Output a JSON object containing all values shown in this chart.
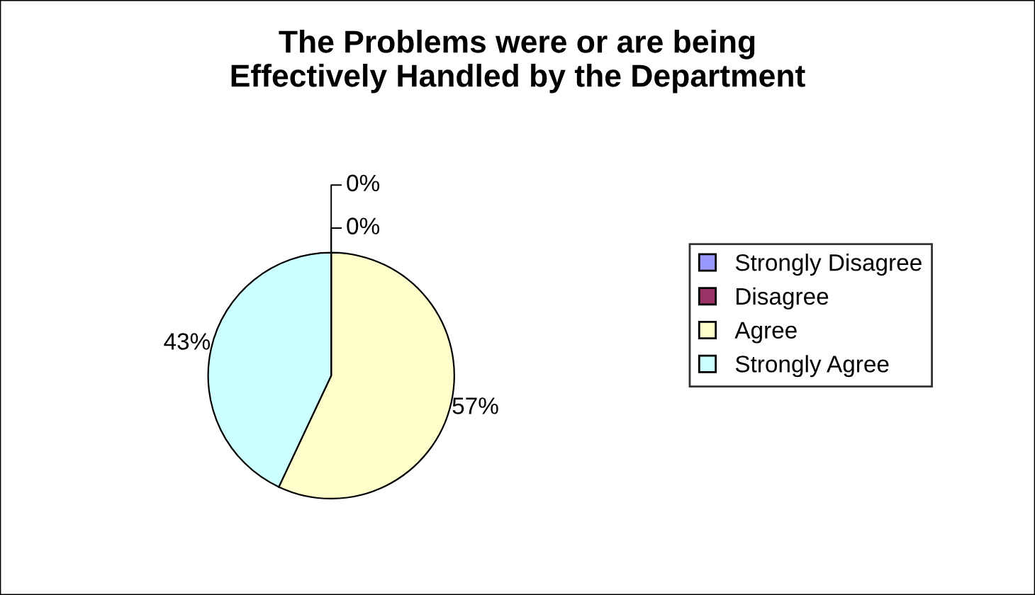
{
  "chart_data": {
    "type": "pie",
    "title": "The Problems were or are being\nEffectively Handled by the Department",
    "categories": [
      "Strongly Disagree",
      "Disagree",
      "Agree",
      "Strongly Agree"
    ],
    "values": [
      0,
      0,
      57,
      43
    ],
    "colors": [
      "#9999ff",
      "#993366",
      "#ffffcc",
      "#ccffff"
    ],
    "value_labels": [
      "0%",
      "0%",
      "57%",
      "43%"
    ],
    "legend": "right"
  }
}
